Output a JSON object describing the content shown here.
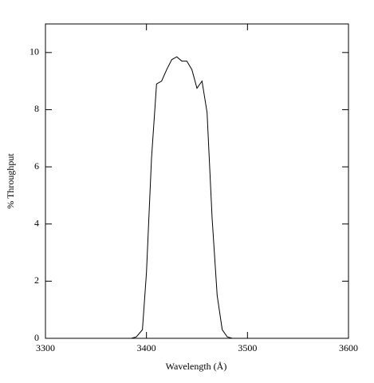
{
  "chart_data": {
    "type": "line",
    "x_label": "Wavelength (Å)",
    "y_label": "% Throughput",
    "xlim": [
      3300,
      3600
    ],
    "xticks": [
      3300,
      3400,
      3500,
      3600
    ],
    "ylim": [
      0,
      11
    ],
    "yticks": [
      0,
      2,
      4,
      6,
      8,
      10
    ],
    "series": [
      {
        "color": "#000000",
        "x": [
          3300,
          3385,
          3390,
          3396,
          3400,
          3405,
          3410,
          3415,
          3420,
          3425,
          3430,
          3435,
          3440,
          3445,
          3450,
          3455,
          3460,
          3465,
          3470,
          3475,
          3480,
          3485,
          3600
        ],
        "values": [
          0,
          0,
          0.05,
          0.3,
          2.3,
          6.3,
          8.9,
          9.0,
          9.4,
          9.75,
          9.85,
          9.7,
          9.7,
          9.4,
          8.75,
          9.0,
          7.9,
          4.2,
          1.5,
          0.3,
          0.05,
          0,
          0
        ]
      }
    ]
  }
}
